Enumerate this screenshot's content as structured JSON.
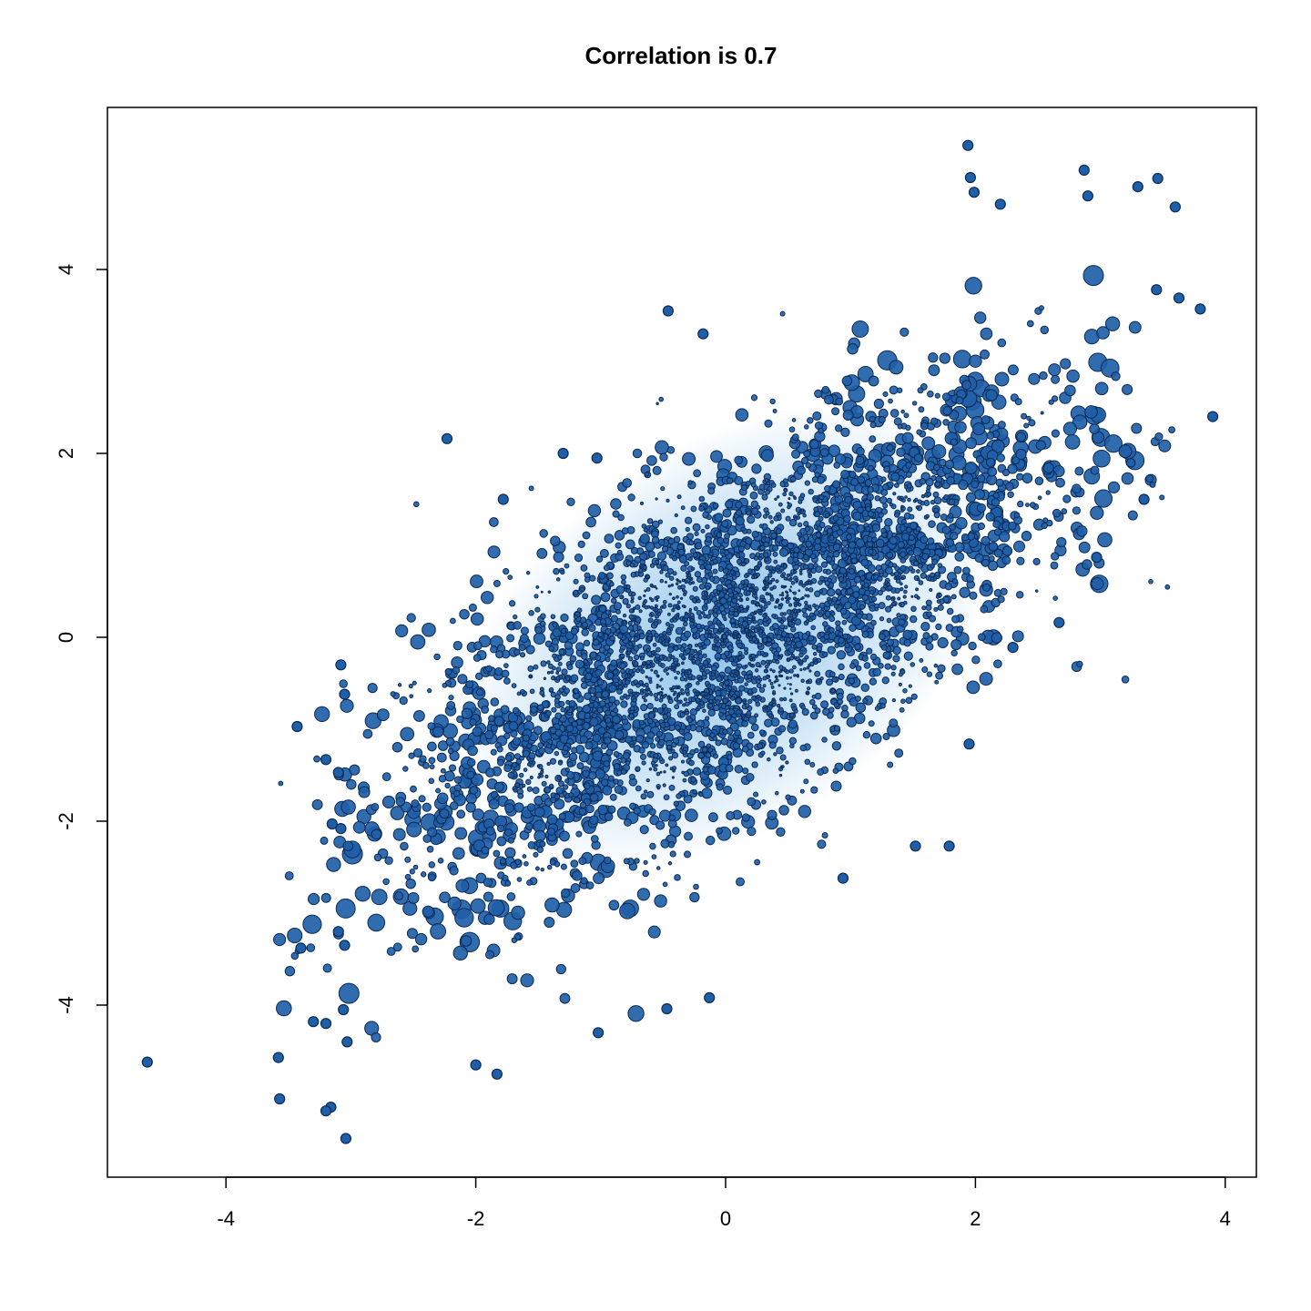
{
  "chart_data": {
    "type": "scatter",
    "title": "Correlation is 0.7",
    "xlabel": "",
    "ylabel": "",
    "correlation": 0.7,
    "xlim": [
      -4.9,
      4.2
    ],
    "ylim": [
      -5.7,
      5.8
    ],
    "x_ticks": [
      -4,
      -2,
      0,
      2,
      4
    ],
    "x_tick_labels": [
      "-4",
      "-2",
      "0",
      "2",
      "4"
    ],
    "y_ticks": [
      -4,
      -2,
      0,
      2,
      4
    ],
    "y_tick_labels": [
      "-4",
      "-2",
      "0",
      "2",
      "4"
    ],
    "grid": false,
    "legend": "none",
    "point_color": "#1f5fa8",
    "point_edge_color": "#0b2a55",
    "point_glow_color": "#2a8fd6",
    "outliers": [
      {
        "x": 1.94,
        "y": 5.35
      },
      {
        "x": 1.96,
        "y": 5.0
      },
      {
        "x": 1.99,
        "y": 4.84
      },
      {
        "x": 2.87,
        "y": 5.08
      },
      {
        "x": 3.46,
        "y": 4.99
      },
      {
        "x": 3.3,
        "y": 4.9
      },
      {
        "x": 2.9,
        "y": 4.8
      },
      {
        "x": 3.6,
        "y": 4.68
      },
      {
        "x": 2.2,
        "y": 4.71
      },
      {
        "x": 3.8,
        "y": 3.57
      },
      {
        "x": 3.63,
        "y": 3.69
      },
      {
        "x": 3.45,
        "y": 3.78
      },
      {
        "x": 3.9,
        "y": 2.4
      },
      {
        "x": 3.35,
        "y": 1.5
      },
      {
        "x": 2.97,
        "y": 0.87
      },
      {
        "x": 2.67,
        "y": 0.16
      },
      {
        "x": 2.3,
        "y": -0.11
      },
      {
        "x": 1.95,
        "y": -1.16
      },
      {
        "x": 1.79,
        "y": -2.27
      },
      {
        "x": 1.52,
        "y": -2.27
      },
      {
        "x": 0.94,
        "y": -2.62
      },
      {
        "x": -0.46,
        "y": 3.55
      },
      {
        "x": -0.18,
        "y": 3.3
      },
      {
        "x": -2.23,
        "y": 2.16
      },
      {
        "x": -1.78,
        "y": 1.5
      },
      {
        "x": -1.3,
        "y": 2.0
      },
      {
        "x": -1.03,
        "y": 1.95
      },
      {
        "x": -3.08,
        "y": -0.3
      },
      {
        "x": -3.05,
        "y": -0.62
      },
      {
        "x": -3.43,
        "y": -0.97
      },
      {
        "x": -3.2,
        "y": -1.33
      },
      {
        "x": -3.1,
        "y": -1.47
      },
      {
        "x": -3.08,
        "y": -2.08
      },
      {
        "x": -3.15,
        "y": -2.03
      },
      {
        "x": -3.1,
        "y": -3.2
      },
      {
        "x": -3.05,
        "y": -3.35
      },
      {
        "x": -3.4,
        "y": -3.38
      },
      {
        "x": -3.3,
        "y": -4.18
      },
      {
        "x": -3.2,
        "y": -4.2
      },
      {
        "x": -3.06,
        "y": -4.05
      },
      {
        "x": -3.03,
        "y": -4.4
      },
      {
        "x": -3.58,
        "y": -4.57
      },
      {
        "x": -4.63,
        "y": -4.62
      },
      {
        "x": -3.57,
        "y": -5.02
      },
      {
        "x": -3.16,
        "y": -5.11
      },
      {
        "x": -3.2,
        "y": -5.15
      },
      {
        "x": -3.04,
        "y": -5.45
      },
      {
        "x": -0.47,
        "y": -4.04
      },
      {
        "x": -0.13,
        "y": -3.92
      },
      {
        "x": -1.02,
        "y": -4.3
      },
      {
        "x": -2.0,
        "y": -4.65
      },
      {
        "x": -1.83,
        "y": -4.75
      }
    ]
  }
}
